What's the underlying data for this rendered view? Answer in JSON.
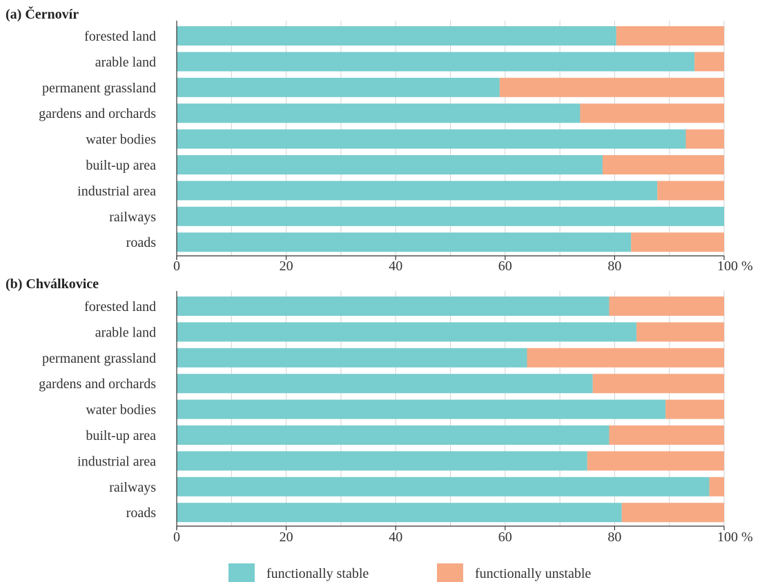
{
  "chart_data": [
    {
      "type": "bar",
      "orientation": "horizontal",
      "stacked": true,
      "title": "(a) Černovír",
      "categories": [
        "forested land",
        "arable land",
        "permanent grassland",
        "gardens and orchards",
        "water bodies",
        "built-up area",
        "industrial area",
        "railways",
        "roads"
      ],
      "series": [
        {
          "name": "functionally stable",
          "values": [
            80.3,
            94.6,
            59.0,
            73.7,
            93.0,
            77.8,
            87.8,
            100.0,
            83.0
          ]
        },
        {
          "name": "functionally unstable",
          "values": [
            19.7,
            5.4,
            41.0,
            26.3,
            7.0,
            22.2,
            12.2,
            0.0,
            17.0
          ]
        }
      ],
      "xlim": [
        0,
        100
      ],
      "x_ticks": [
        "0",
        "20",
        "40",
        "60",
        "80",
        "100 %"
      ],
      "grid": true
    },
    {
      "type": "bar",
      "orientation": "horizontal",
      "stacked": true,
      "title": "(b) Chválkovice",
      "categories": [
        "forested land",
        "arable land",
        "permanent grassland",
        "gardens and orchards",
        "water bodies",
        "built-up area",
        "industrial area",
        "railways",
        "roads"
      ],
      "series": [
        {
          "name": "functionally stable",
          "values": [
            79.0,
            84.0,
            64.0,
            76.0,
            89.3,
            79.0,
            75.0,
            97.3,
            81.3
          ]
        },
        {
          "name": "functionally unstable",
          "values": [
            21.0,
            16.0,
            36.0,
            24.0,
            10.7,
            21.0,
            25.0,
            2.7,
            18.7
          ]
        }
      ],
      "xlim": [
        0,
        100
      ],
      "x_ticks": [
        "0",
        "20",
        "40",
        "60",
        "80",
        "100 %"
      ],
      "grid": true
    }
  ],
  "legend": {
    "placement": "bottom",
    "items": [
      {
        "label": "functionally stable",
        "color": "#78CDCE"
      },
      {
        "label": "functionally unstable",
        "color": "#F7A984"
      }
    ]
  },
  "colors": {
    "stable": "#78CDCE",
    "unstable": "#F7A984",
    "grid": "#d2d2d2",
    "axis": "#333333"
  }
}
